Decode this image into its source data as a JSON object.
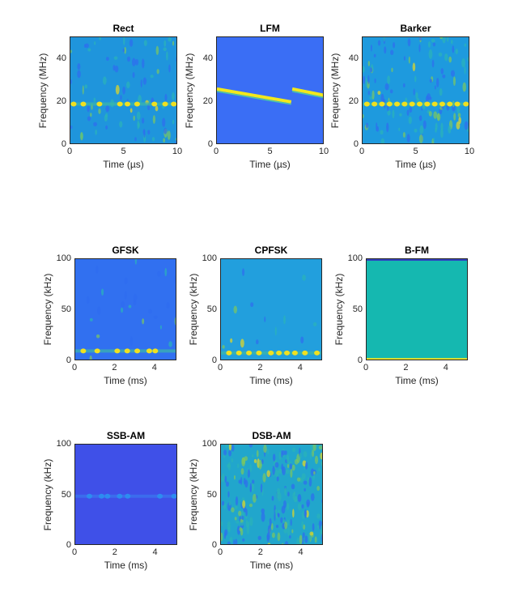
{
  "chart_data": [
    {
      "type": "heatmap",
      "title": "Rect",
      "xlabel": "Time (µs)",
      "ylabel": "Frequency (MHz)",
      "xlim": [
        0,
        10
      ],
      "ylim": [
        0,
        50
      ],
      "xticks": [
        "0",
        "5",
        "10"
      ],
      "yticks": [
        "0",
        "20",
        "40"
      ],
      "background_color": "#1f95dc",
      "noise": 0.35,
      "features": {
        "tone_bursts": {
          "freq": 19,
          "times": [
            0.3,
            1.2,
            2.7,
            4.6,
            5.3,
            6.2,
            7.8,
            8.8,
            9.6
          ]
        }
      }
    },
    {
      "type": "heatmap",
      "title": "LFM",
      "xlabel": "Time (µs)",
      "ylabel": "Frequency (MHz)",
      "xlim": [
        0,
        10
      ],
      "ylim": [
        0,
        50
      ],
      "xticks": [
        "0",
        "5",
        "10"
      ],
      "yticks": [
        "0",
        "20",
        "40"
      ],
      "background_color": "#3a6ef5",
      "noise": 0,
      "features": {
        "chirps": [
          {
            "t": [
              0,
              6.9
            ],
            "f": [
              26,
              20
            ]
          },
          {
            "t": [
              7.0,
              10
            ],
            "f": [
              26,
              23
            ]
          }
        ]
      }
    },
    {
      "type": "heatmap",
      "title": "Barker",
      "xlabel": "Time (µs)",
      "ylabel": "Frequency (MHz)",
      "xlim": [
        0,
        10
      ],
      "ylim": [
        0,
        50
      ],
      "xticks": [
        "0",
        "5",
        "10"
      ],
      "yticks": [
        "0",
        "20",
        "40"
      ],
      "background_color": "#1e9ade",
      "noise": 0.5,
      "features": {
        "tone_bursts": {
          "freq": 19,
          "times": [
            0.4,
            1.1,
            1.8,
            2.5,
            3.2,
            3.9,
            4.6,
            5.3,
            6.0,
            6.7,
            7.4,
            8.1,
            8.8,
            9.6
          ]
        }
      }
    },
    {
      "type": "heatmap",
      "title": "GFSK",
      "xlabel": "Time (ms)",
      "ylabel": "Frequency (kHz)",
      "xlim": [
        0,
        5.1
      ],
      "ylim": [
        0,
        100
      ],
      "xticks": [
        "0",
        "2",
        "4"
      ],
      "yticks": [
        "0",
        "50",
        "100"
      ],
      "background_color": "#3170f0",
      "noise": 0.1,
      "features": {
        "tone_bursts": {
          "freq": 10,
          "times": [
            0.4,
            1.1,
            2.1,
            2.6,
            3.1,
            3.7,
            4.0
          ]
        }
      }
    },
    {
      "type": "heatmap",
      "title": "CPFSK",
      "xlabel": "Time (ms)",
      "ylabel": "Frequency (kHz)",
      "xlim": [
        0,
        5.1
      ],
      "ylim": [
        0,
        100
      ],
      "xticks": [
        "0",
        "2",
        "4"
      ],
      "yticks": [
        "0",
        "50",
        "100"
      ],
      "background_color": "#229fdd",
      "noise": 0.05,
      "features": {
        "tone_bursts": {
          "freq": 8,
          "times": [
            0.4,
            0.9,
            1.4,
            1.9,
            2.5,
            2.9,
            3.3,
            3.7,
            4.2,
            4.8
          ]
        }
      }
    },
    {
      "type": "heatmap",
      "title": "B-FM",
      "xlabel": "Time (ms)",
      "ylabel": "Frequency (kHz)",
      "xlim": [
        0,
        5.1
      ],
      "ylim": [
        0,
        100
      ],
      "xticks": [
        "0",
        "2",
        "4"
      ],
      "yticks": [
        "0",
        "50",
        "100"
      ],
      "background_color": "#15b8b0",
      "noise": 0,
      "features": {
        "low_band": {
          "freq": [
            0,
            3
          ]
        }
      }
    },
    {
      "type": "heatmap",
      "title": "SSB-AM",
      "xlabel": "Time (ms)",
      "ylabel": "Frequency (kHz)",
      "xlim": [
        0,
        5.1
      ],
      "ylim": [
        0,
        100
      ],
      "xticks": [
        "0",
        "2",
        "4"
      ],
      "yticks": [
        "0",
        "50",
        "100"
      ],
      "background_color": "#3f50e8",
      "noise": 0,
      "features": {
        "tone_bursts": {
          "freq": 49,
          "times": [
            0.7,
            1.3,
            1.6,
            2.2,
            2.6,
            4.2,
            4.9
          ]
        }
      }
    },
    {
      "type": "heatmap",
      "title": "DSB-AM",
      "xlabel": "Time (ms)",
      "ylabel": "Frequency (kHz)",
      "xlim": [
        0,
        5.1
      ],
      "ylim": [
        0,
        100
      ],
      "xticks": [
        "0",
        "2",
        "4"
      ],
      "yticks": [
        "0",
        "50",
        "100"
      ],
      "background_color": "#21a6cc",
      "noise": 0.9,
      "features": {}
    }
  ]
}
